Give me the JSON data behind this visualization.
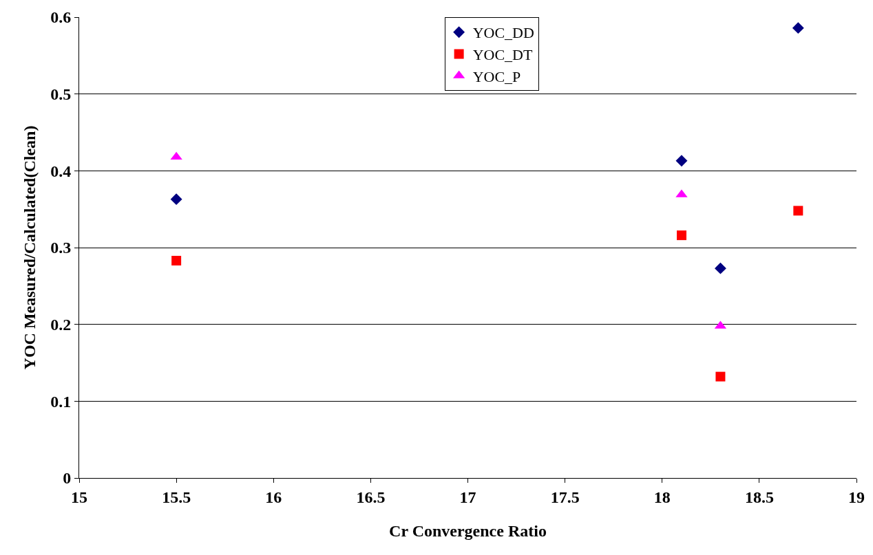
{
  "chart_data": {
    "type": "scatter",
    "xlabel": "Cr Convergence Ratio",
    "ylabel": "YOC Measured/Calculated(Clean)",
    "x": [
      15.5,
      18.1,
      18.3,
      18.7
    ],
    "series": [
      {
        "name": "YOC_DD",
        "color": "#000080",
        "marker": "diamond",
        "values": [
          0.363,
          0.413,
          0.273,
          0.586
        ]
      },
      {
        "name": "YOC_DT",
        "color": "#ff0000",
        "marker": "square",
        "values": [
          0.283,
          0.316,
          0.132,
          0.348
        ]
      },
      {
        "name": "YOC_P",
        "color": "#ff00ff",
        "marker": "triangle",
        "values": [
          0.418,
          0.369,
          0.198,
          null
        ]
      }
    ],
    "xlim": [
      15,
      19
    ],
    "xticks": [
      15,
      15.5,
      16,
      16.5,
      17,
      17.5,
      18,
      18.5,
      19
    ],
    "ylim": [
      0,
      0.6
    ],
    "yticks": [
      0,
      0.1,
      0.2,
      0.3,
      0.4,
      0.5,
      0.6
    ],
    "grid": "y",
    "legend": "top"
  }
}
